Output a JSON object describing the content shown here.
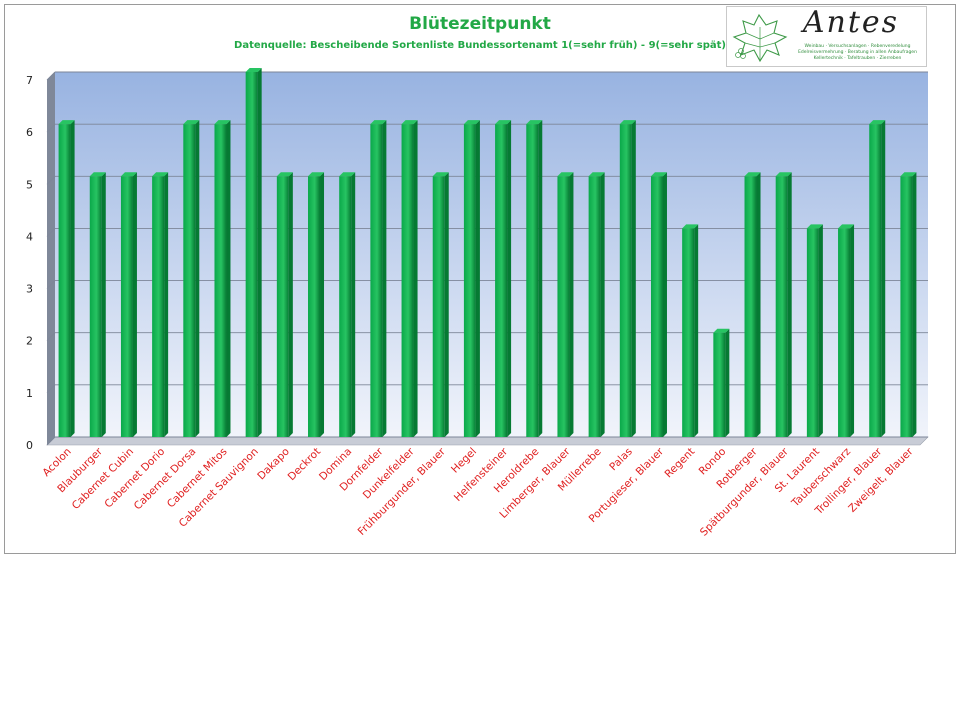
{
  "header": {
    "title": "Blütezeitpunkt",
    "subtitle": "Datenquelle: Bescheibende Sortenliste  Bundessortenamt 1(=sehr früh) - 9(=sehr spät)"
  },
  "logo": {
    "name": "Antes",
    "tagline": "Weinbau · Versuchsanlagen · Rebenveredelung Edelreisvermehrung · Beratung in allen Anbaufragen Kellertechnik · Tafeltrauben · Zierreben"
  },
  "colors": {
    "bar": "#0aa84a",
    "bar_dark": "#067a33",
    "bar_top": "#27c462",
    "plot_top": "#98b3e1",
    "plot_bottom": "#f1f4fb",
    "category_label": "#e02020",
    "title": "#22a846"
  },
  "chart_data": {
    "type": "bar",
    "title": "Blütezeitpunkt",
    "subtitle": "Datenquelle: Bescheibende Sortenliste  Bundessortenamt 1(=sehr früh) - 9(=sehr spät)",
    "categories": [
      "Acolon",
      "Blauburger",
      "Cabernet Cubin",
      "Cabernet Dorio",
      "Cabernet Dorsa",
      "Cabernet Mitos",
      "Cabernet Sauvignon",
      "Dakapo",
      "Deckrot",
      "Domina",
      "Dornfelder",
      "Dunkelfelder",
      "Frühburgunder, Blauer",
      "Hegel",
      "Helfensteiner",
      "Heroldrebe",
      "Limberger, Blauer",
      "Müllerrebe",
      "Palas",
      "Portugieser, Blauer",
      "Regent",
      "Rondo",
      "Rotberger",
      "Spätburgunder, Blauer",
      "St. Laurent",
      "Tauberschwarz",
      "Trollinger, Blauer",
      "Zweigelt, Blauer"
    ],
    "values": [
      6,
      5,
      5,
      5,
      6,
      6,
      7,
      5,
      5,
      5,
      6,
      6,
      5,
      6,
      6,
      6,
      5,
      5,
      6,
      5,
      4,
      2,
      5,
      5,
      4,
      4,
      6,
      5
    ],
    "ylim": [
      0,
      7
    ],
    "yticks": [
      "0",
      "1",
      "2",
      "3",
      "4",
      "5",
      "6",
      "7"
    ],
    "grid": true,
    "legend": "none"
  }
}
